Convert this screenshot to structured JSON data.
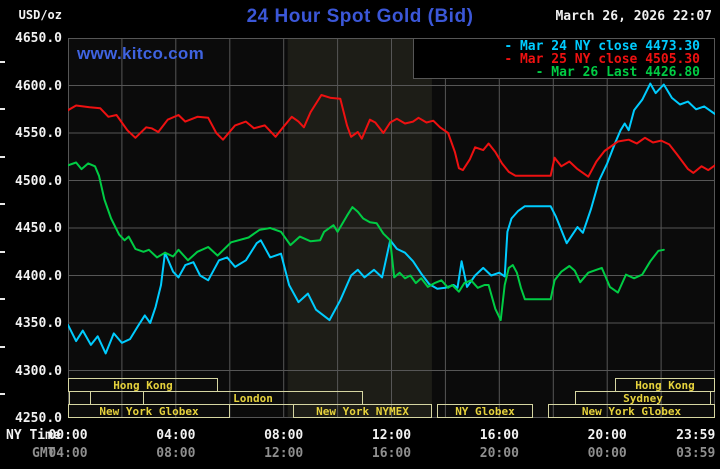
{
  "header": {
    "unit_label": "USD/oz",
    "title": "24 Hour Spot Gold (Bid)",
    "datetime": "March 26, 2026 22:07",
    "watermark": "www.kitco.com"
  },
  "colors": {
    "background": "#000000",
    "plot_bg": "#0b0b0b",
    "grid": "#565656",
    "nymex_band": "#1d1d17",
    "title_blue": "#3b57d8",
    "watermark_blue": "#3f63e0",
    "axis_white": "#f2f2f2",
    "gmt_gray": "#8f8f8f",
    "session_border": "#d6d6a2",
    "session_text": "#e6d23c",
    "cyan": "#00ccff",
    "red": "#ee1111",
    "green": "#00cc44"
  },
  "legend": [
    {
      "dash": "-",
      "label": "Mar 24 NY close 4473.30",
      "color": "#00ccff"
    },
    {
      "dash": "-",
      "label": "Mar 25 NY close 4505.30",
      "color": "#ee1111"
    },
    {
      "dash": "-",
      "label": "Mar 26 Last 4426.80",
      "color": "#00cc44"
    }
  ],
  "y_axis": {
    "ticks": [
      {
        "value": 4650,
        "label": "4650.0"
      },
      {
        "value": 4600,
        "label": "4600.0"
      },
      {
        "value": 4550,
        "label": "4550.0"
      },
      {
        "value": 4500,
        "label": "4500.0"
      },
      {
        "value": 4450,
        "label": "4450.0"
      },
      {
        "value": 4400,
        "label": "4400.0"
      },
      {
        "value": 4350,
        "label": "4350.0"
      },
      {
        "value": 4300,
        "label": "4300.0"
      },
      {
        "value": 4250,
        "label": "4250.0"
      }
    ],
    "minor_tick_values": [
      4625,
      4575,
      4525,
      4475,
      4425,
      4375,
      4325,
      4275
    ]
  },
  "x_axis": {
    "ny_time_label": "NY Time",
    "gmt_label": "GMT",
    "ticks": [
      {
        "t": 0,
        "ny": "00:00",
        "gmt": "04:00"
      },
      {
        "t": 4,
        "ny": "04:00",
        "gmt": "08:00"
      },
      {
        "t": 8,
        "ny": "08:00",
        "gmt": "12:00"
      },
      {
        "t": 12,
        "ny": "12:00",
        "gmt": "16:00"
      },
      {
        "t": 16,
        "ny": "16:00",
        "gmt": "20:00"
      },
      {
        "t": 20,
        "ny": "20:00",
        "gmt": "00:00"
      },
      {
        "t": 23.983,
        "ny": "23:59",
        "gmt": "03:59",
        "align": "right"
      }
    ]
  },
  "sessions": [
    {
      "row": 1,
      "start": 0,
      "end": 5.55,
      "label": "Hong Kong"
    },
    {
      "row": 1,
      "start": 20.3,
      "end": 24,
      "label": "Hong Kong"
    },
    {
      "row": 2,
      "start": 0.05,
      "end": 0.85,
      "label": ""
    },
    {
      "row": 2,
      "start": 2.8,
      "end": 10.95,
      "label": "London"
    },
    {
      "row": 2,
      "start": 18.8,
      "end": 23.85,
      "label": "Sydney"
    },
    {
      "row": 3,
      "start": 0,
      "end": 6.0,
      "label": "New York Globex"
    },
    {
      "row": 3,
      "start": 8.35,
      "end": 13.5,
      "label": "New York NYMEX"
    },
    {
      "row": 3,
      "start": 13.7,
      "end": 17.25,
      "label": "NY Globex"
    },
    {
      "row": 3,
      "start": 17.8,
      "end": 24,
      "label": "New York Globex"
    }
  ],
  "chart_data": {
    "type": "line",
    "title": "24 Hour Spot Gold (Bid)",
    "xlabel": "NY Time (hours)",
    "ylabel": "USD/oz",
    "xlim": [
      0,
      24
    ],
    "ylim": [
      4250,
      4650
    ],
    "y_tick_step": 50,
    "x_gridline_step_hours": 2,
    "nymex_band_hours": [
      8.15,
      13.5
    ],
    "series": [
      {
        "name": "Mar 24 NY close 4473.30",
        "color": "#00ccff",
        "points": [
          [
            0,
            4348
          ],
          [
            0.3,
            4331
          ],
          [
            0.55,
            4342
          ],
          [
            0.85,
            4327
          ],
          [
            1.1,
            4336
          ],
          [
            1.4,
            4318
          ],
          [
            1.7,
            4339
          ],
          [
            2.0,
            4329
          ],
          [
            2.3,
            4333
          ],
          [
            2.6,
            4347
          ],
          [
            2.85,
            4358
          ],
          [
            3.05,
            4350
          ],
          [
            3.25,
            4367
          ],
          [
            3.45,
            4390
          ],
          [
            3.6,
            4424
          ],
          [
            3.9,
            4404
          ],
          [
            4.1,
            4398
          ],
          [
            4.35,
            4411
          ],
          [
            4.65,
            4414
          ],
          [
            4.9,
            4400
          ],
          [
            5.2,
            4395
          ],
          [
            5.6,
            4416
          ],
          [
            5.9,
            4419
          ],
          [
            6.2,
            4409
          ],
          [
            6.6,
            4416
          ],
          [
            7.0,
            4434
          ],
          [
            7.15,
            4437
          ],
          [
            7.5,
            4419
          ],
          [
            7.9,
            4423
          ],
          [
            8.2,
            4390
          ],
          [
            8.55,
            4372
          ],
          [
            8.9,
            4381
          ],
          [
            9.2,
            4364
          ],
          [
            9.7,
            4353
          ],
          [
            10.1,
            4374
          ],
          [
            10.5,
            4400
          ],
          [
            10.75,
            4406
          ],
          [
            11.0,
            4398
          ],
          [
            11.35,
            4406
          ],
          [
            11.65,
            4398
          ],
          [
            11.95,
            4437
          ],
          [
            12.2,
            4428
          ],
          [
            12.5,
            4424
          ],
          [
            12.8,
            4415
          ],
          [
            13.1,
            4402
          ],
          [
            13.4,
            4391
          ],
          [
            13.7,
            4386
          ],
          [
            14.0,
            4387
          ],
          [
            14.3,
            4390
          ],
          [
            14.45,
            4387
          ],
          [
            14.6,
            4415
          ],
          [
            14.8,
            4388
          ],
          [
            15.1,
            4400
          ],
          [
            15.4,
            4408
          ],
          [
            15.7,
            4400
          ],
          [
            16.0,
            4403
          ],
          [
            16.2,
            4399
          ],
          [
            16.3,
            4446
          ],
          [
            16.45,
            4460
          ],
          [
            16.7,
            4468
          ],
          [
            16.95,
            4473
          ],
          [
            17.9,
            4473
          ],
          [
            18.1,
            4462
          ],
          [
            18.5,
            4434
          ],
          [
            18.9,
            4451
          ],
          [
            19.1,
            4445
          ],
          [
            19.4,
            4470
          ],
          [
            19.7,
            4500
          ],
          [
            20.0,
            4518
          ],
          [
            20.3,
            4540
          ],
          [
            20.5,
            4553
          ],
          [
            20.65,
            4560
          ],
          [
            20.8,
            4553
          ],
          [
            21.0,
            4574
          ],
          [
            21.3,
            4585
          ],
          [
            21.6,
            4602
          ],
          [
            21.8,
            4592
          ],
          [
            22.1,
            4601
          ],
          [
            22.4,
            4587
          ],
          [
            22.7,
            4580
          ],
          [
            23.0,
            4583
          ],
          [
            23.3,
            4575
          ],
          [
            23.6,
            4578
          ],
          [
            24,
            4570
          ]
        ]
      },
      {
        "name": "Mar 25 NY close 4505.30",
        "color": "#ee1111",
        "points": [
          [
            0,
            4574
          ],
          [
            0.3,
            4579
          ],
          [
            0.8,
            4577
          ],
          [
            1.2,
            4576
          ],
          [
            1.5,
            4567
          ],
          [
            1.8,
            4569
          ],
          [
            2.2,
            4553
          ],
          [
            2.5,
            4545
          ],
          [
            2.9,
            4556
          ],
          [
            3.1,
            4555
          ],
          [
            3.35,
            4551
          ],
          [
            3.7,
            4564
          ],
          [
            4.1,
            4569
          ],
          [
            4.35,
            4562
          ],
          [
            4.8,
            4567
          ],
          [
            5.2,
            4566
          ],
          [
            5.5,
            4550
          ],
          [
            5.75,
            4543
          ],
          [
            6.2,
            4558
          ],
          [
            6.6,
            4562
          ],
          [
            6.9,
            4555
          ],
          [
            7.3,
            4558
          ],
          [
            7.7,
            4546
          ],
          [
            7.95,
            4555
          ],
          [
            8.3,
            4567
          ],
          [
            8.55,
            4562
          ],
          [
            8.75,
            4556
          ],
          [
            9.0,
            4572
          ],
          [
            9.4,
            4590
          ],
          [
            9.75,
            4587
          ],
          [
            10.1,
            4586
          ],
          [
            10.35,
            4558
          ],
          [
            10.5,
            4546
          ],
          [
            10.75,
            4551
          ],
          [
            10.9,
            4544
          ],
          [
            11.2,
            4564
          ],
          [
            11.4,
            4561
          ],
          [
            11.7,
            4550
          ],
          [
            11.95,
            4561
          ],
          [
            12.2,
            4565
          ],
          [
            12.5,
            4560
          ],
          [
            12.8,
            4562
          ],
          [
            13.0,
            4566
          ],
          [
            13.3,
            4561
          ],
          [
            13.55,
            4563
          ],
          [
            13.8,
            4556
          ],
          [
            14.1,
            4550
          ],
          [
            14.35,
            4530
          ],
          [
            14.5,
            4513
          ],
          [
            14.65,
            4511
          ],
          [
            14.9,
            4522
          ],
          [
            15.1,
            4535
          ],
          [
            15.4,
            4532
          ],
          [
            15.6,
            4539
          ],
          [
            15.85,
            4530
          ],
          [
            16.1,
            4518
          ],
          [
            16.35,
            4509
          ],
          [
            16.6,
            4505
          ],
          [
            17.9,
            4505
          ],
          [
            18.05,
            4524
          ],
          [
            18.3,
            4515
          ],
          [
            18.6,
            4520
          ],
          [
            18.9,
            4512
          ],
          [
            19.3,
            4504
          ],
          [
            19.6,
            4520
          ],
          [
            19.9,
            4531
          ],
          [
            20.4,
            4541
          ],
          [
            20.8,
            4543
          ],
          [
            21.1,
            4539
          ],
          [
            21.4,
            4545
          ],
          [
            21.7,
            4540
          ],
          [
            22.0,
            4542
          ],
          [
            22.3,
            4538
          ],
          [
            22.6,
            4527
          ],
          [
            23.0,
            4512
          ],
          [
            23.2,
            4508
          ],
          [
            23.5,
            4515
          ],
          [
            23.75,
            4511
          ],
          [
            24,
            4516
          ]
        ]
      },
      {
        "name": "Mar 26 Last 4426.80",
        "color": "#00cc44",
        "points": [
          [
            0,
            4516
          ],
          [
            0.3,
            4519
          ],
          [
            0.5,
            4512
          ],
          [
            0.75,
            4518
          ],
          [
            1.0,
            4515
          ],
          [
            1.15,
            4505
          ],
          [
            1.35,
            4480
          ],
          [
            1.6,
            4460
          ],
          [
            1.9,
            4443
          ],
          [
            2.1,
            4437
          ],
          [
            2.25,
            4441
          ],
          [
            2.5,
            4428
          ],
          [
            2.8,
            4425
          ],
          [
            3.0,
            4427
          ],
          [
            3.3,
            4419
          ],
          [
            3.6,
            4424
          ],
          [
            3.9,
            4420
          ],
          [
            4.1,
            4427
          ],
          [
            4.45,
            4416
          ],
          [
            4.8,
            4425
          ],
          [
            5.2,
            4430
          ],
          [
            5.55,
            4421
          ],
          [
            6.05,
            4435
          ],
          [
            6.7,
            4440
          ],
          [
            7.1,
            4448
          ],
          [
            7.5,
            4450
          ],
          [
            7.9,
            4446
          ],
          [
            8.25,
            4432
          ],
          [
            8.6,
            4441
          ],
          [
            9.0,
            4436
          ],
          [
            9.35,
            4437
          ],
          [
            9.5,
            4446
          ],
          [
            9.85,
            4453
          ],
          [
            10.0,
            4446
          ],
          [
            10.35,
            4463
          ],
          [
            10.55,
            4472
          ],
          [
            10.75,
            4467
          ],
          [
            10.95,
            4460
          ],
          [
            11.2,
            4456
          ],
          [
            11.45,
            4455
          ],
          [
            11.7,
            4444
          ],
          [
            11.95,
            4437
          ],
          [
            12.1,
            4398
          ],
          [
            12.3,
            4403
          ],
          [
            12.5,
            4397
          ],
          [
            12.7,
            4400
          ],
          [
            12.9,
            4392
          ],
          [
            13.1,
            4397
          ],
          [
            13.35,
            4388
          ],
          [
            13.6,
            4392
          ],
          [
            13.85,
            4395
          ],
          [
            14.1,
            4387
          ],
          [
            14.25,
            4390
          ],
          [
            14.5,
            4383
          ],
          [
            14.7,
            4392
          ],
          [
            14.95,
            4395
          ],
          [
            15.2,
            4387
          ],
          [
            15.45,
            4390
          ],
          [
            15.6,
            4390
          ],
          [
            15.85,
            4365
          ],
          [
            16.05,
            4353
          ],
          [
            16.2,
            4390
          ],
          [
            16.35,
            4408
          ],
          [
            16.5,
            4411
          ],
          [
            16.65,
            4403
          ],
          [
            16.8,
            4387
          ],
          [
            16.95,
            4375
          ],
          [
            17.9,
            4375
          ],
          [
            18.05,
            4395
          ],
          [
            18.3,
            4404
          ],
          [
            18.6,
            4410
          ],
          [
            18.8,
            4405
          ],
          [
            19.0,
            4393
          ],
          [
            19.3,
            4403
          ],
          [
            19.6,
            4406
          ],
          [
            19.8,
            4408
          ],
          [
            20.1,
            4388
          ],
          [
            20.4,
            4382
          ],
          [
            20.7,
            4401
          ],
          [
            21.0,
            4397
          ],
          [
            21.3,
            4401
          ],
          [
            21.6,
            4415
          ],
          [
            21.9,
            4426
          ],
          [
            22.1,
            4427
          ]
        ]
      }
    ]
  }
}
